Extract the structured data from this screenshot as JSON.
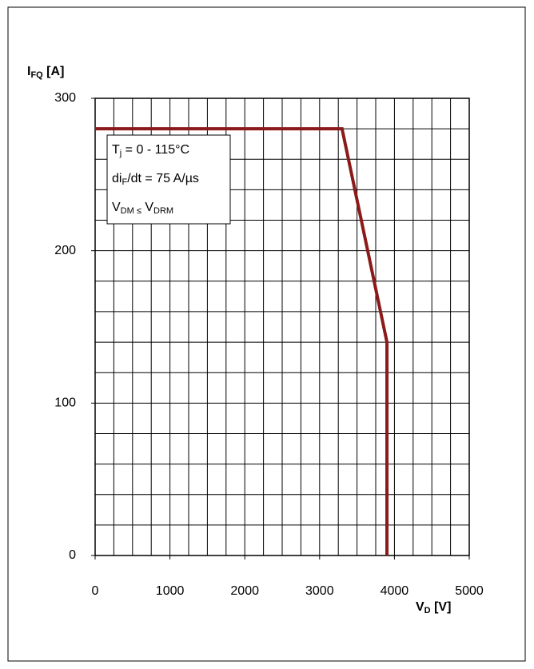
{
  "chart_data": {
    "type": "line",
    "y_label": [
      {
        "text": "I"
      },
      {
        "text": "FQ",
        "sub": true
      },
      {
        "text": " [A]"
      }
    ],
    "x_label": [
      {
        "text": "V"
      },
      {
        "text": "D",
        "sub": true
      },
      {
        "text": " [V]"
      }
    ],
    "annotation_lines": [
      [
        {
          "text": "T"
        },
        {
          "text": "j",
          "sub": true
        },
        {
          "text": " = 0 - 115°C"
        }
      ],
      [
        {
          "text": "di"
        },
        {
          "text": "F",
          "sub": true
        },
        {
          "text": "/dt = 75 A/µs"
        }
      ],
      [
        {
          "text": "V"
        },
        {
          "text": "DM ≤",
          "sub": true
        },
        {
          "text": " V"
        },
        {
          "text": "DRM",
          "sub": true
        }
      ]
    ],
    "x": [
      0,
      3300,
      3900,
      3900
    ],
    "series": [
      {
        "color": "#8b1a1a",
        "values": [
          280,
          280,
          140,
          0
        ]
      }
    ],
    "xlim": [
      0,
      5000
    ],
    "ylim": [
      0,
      300
    ],
    "xticks": [
      0,
      1000,
      2000,
      3000,
      4000,
      5000
    ],
    "yticks": [
      0,
      100,
      200,
      300
    ],
    "minor_grid": {
      "x": 250,
      "y": 20
    }
  }
}
